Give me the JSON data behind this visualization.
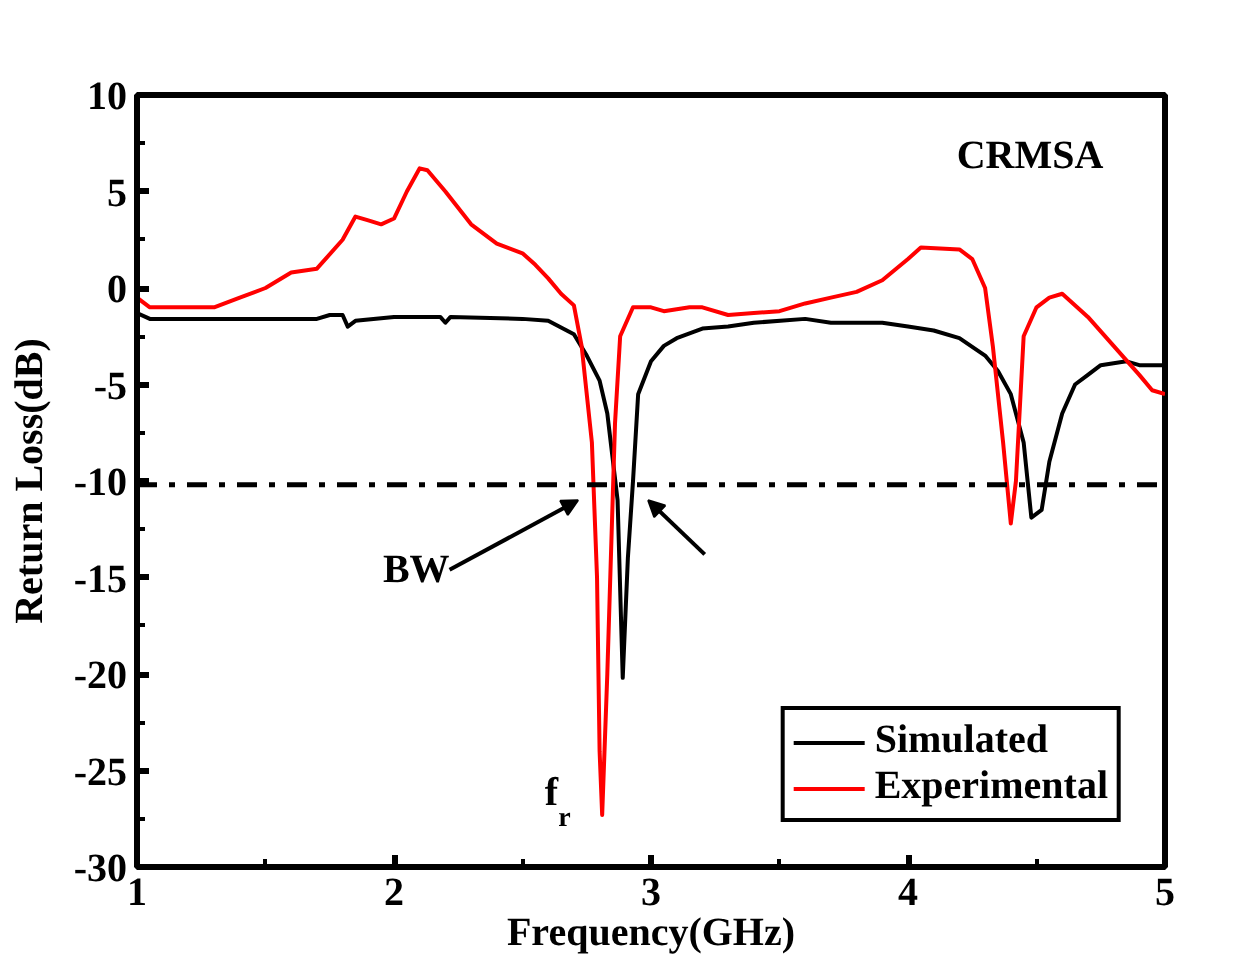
{
  "chart_data": {
    "type": "line",
    "xlabel": "Frequency(GHz)",
    "ylabel": "Return Loss(dB)",
    "xlim": [
      1,
      5
    ],
    "ylim": [
      -30,
      10
    ],
    "xticks": [
      1,
      2,
      3,
      4,
      5
    ],
    "yticks": [
      -30,
      -25,
      -20,
      -15,
      -10,
      -5,
      0,
      5,
      10
    ],
    "grid": false,
    "legend": "bottom right",
    "line_style": "solid",
    "series": [
      {
        "name": "Simulated",
        "color": "#000000",
        "x": [
          1.0,
          1.05,
          1.5,
          1.7,
          1.75,
          1.8,
          1.82,
          1.85,
          2.0,
          2.18,
          2.2,
          2.22,
          2.5,
          2.6,
          2.7,
          2.75,
          2.8,
          2.83,
          2.87,
          2.89,
          2.91,
          2.93,
          2.95,
          3.0,
          3.05,
          3.1,
          3.2,
          3.3,
          3.4,
          3.6,
          3.7,
          3.9,
          4.0,
          4.1,
          4.2,
          4.3,
          4.35,
          4.4,
          4.45,
          4.48,
          4.52,
          4.55,
          4.6,
          4.65,
          4.7,
          4.75,
          4.85,
          4.9,
          5.0
        ],
        "values": [
          -1.3,
          -1.6,
          -1.6,
          -1.6,
          -1.4,
          -1.4,
          -2.0,
          -1.7,
          -1.5,
          -1.5,
          -1.8,
          -1.5,
          -1.6,
          -1.7,
          -2.4,
          -3.5,
          -4.8,
          -6.5,
          -11,
          -20.2,
          -14,
          -10,
          -5.5,
          -3.8,
          -3.0,
          -2.6,
          -2.1,
          -2.0,
          -1.8,
          -1.6,
          -1.8,
          -1.8,
          -2.0,
          -2.2,
          -2.6,
          -3.5,
          -4.3,
          -5.5,
          -8,
          -11.9,
          -11.5,
          -9,
          -6.5,
          -5.0,
          -4.5,
          -4.0,
          -3.8,
          -4.0,
          -4.0
        ]
      },
      {
        "name": "Experimental",
        "color": "#ff0000",
        "x": [
          1.0,
          1.05,
          1.3,
          1.4,
          1.5,
          1.6,
          1.7,
          1.8,
          1.85,
          1.9,
          1.95,
          2.0,
          2.05,
          2.1,
          2.13,
          2.2,
          2.3,
          2.4,
          2.5,
          2.55,
          2.6,
          2.65,
          2.7,
          2.73,
          2.77,
          2.79,
          2.8,
          2.81,
          2.83,
          2.86,
          2.88,
          2.93,
          3.0,
          3.05,
          3.15,
          3.2,
          3.3,
          3.4,
          3.5,
          3.6,
          3.7,
          3.8,
          3.9,
          4.0,
          4.05,
          4.2,
          4.25,
          4.3,
          4.33,
          4.37,
          4.4,
          4.42,
          4.45,
          4.5,
          4.55,
          4.6,
          4.7,
          4.8,
          4.9,
          4.95,
          5.0
        ],
        "values": [
          -0.5,
          -1.0,
          -1.0,
          -0.5,
          0,
          0.8,
          1.0,
          2.5,
          3.7,
          3.5,
          3.3,
          3.6,
          5,
          6.2,
          6.1,
          5.0,
          3.3,
          2.3,
          1.8,
          1.2,
          0.5,
          -0.3,
          -0.9,
          -3,
          -8,
          -15,
          -24,
          -27.3,
          -20,
          -7,
          -2.5,
          -1.0,
          -1.0,
          -1.2,
          -1.0,
          -1.0,
          -1.4,
          -1.3,
          -1.2,
          -0.8,
          -0.5,
          -0.2,
          0.4,
          1.5,
          2.1,
          2.0,
          1.5,
          0,
          -3,
          -8,
          -12.2,
          -10,
          -2.5,
          -1.0,
          -0.5,
          -0.3,
          -1.5,
          -3.0,
          -4.5,
          -5.3,
          -5.5
        ]
      }
    ],
    "ref_lines": [
      {
        "axis": "y",
        "value": -10.2,
        "line_style": "dashdot",
        "color": "#000000"
      }
    ],
    "annotations": [
      "CRMSA",
      "BW",
      {
        "text": "f$_{r}$",
        "x": 2.81,
        "y": -27.3
      }
    ]
  }
}
